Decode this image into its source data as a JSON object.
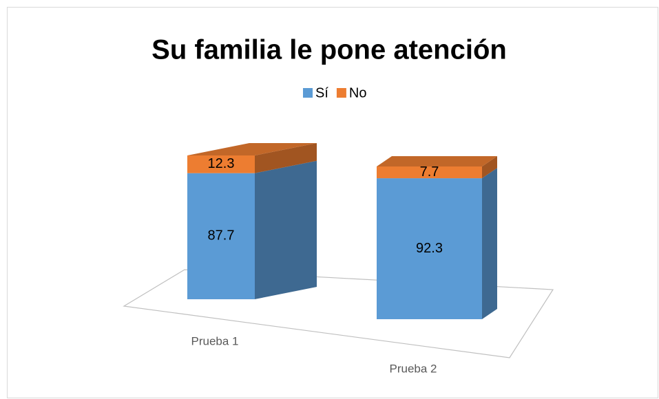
{
  "chart_data": {
    "type": "bar3d_stacked",
    "title": "Su familia le pone atención",
    "categories": [
      "Prueba 1",
      "Prueba 2"
    ],
    "series": [
      {
        "name": "Sí",
        "color": "#5b9bd5",
        "values": [
          87.7,
          92.3
        ]
      },
      {
        "name": "No",
        "color": "#ed7d31",
        "values": [
          12.3,
          7.7
        ]
      }
    ],
    "legend": "top"
  }
}
